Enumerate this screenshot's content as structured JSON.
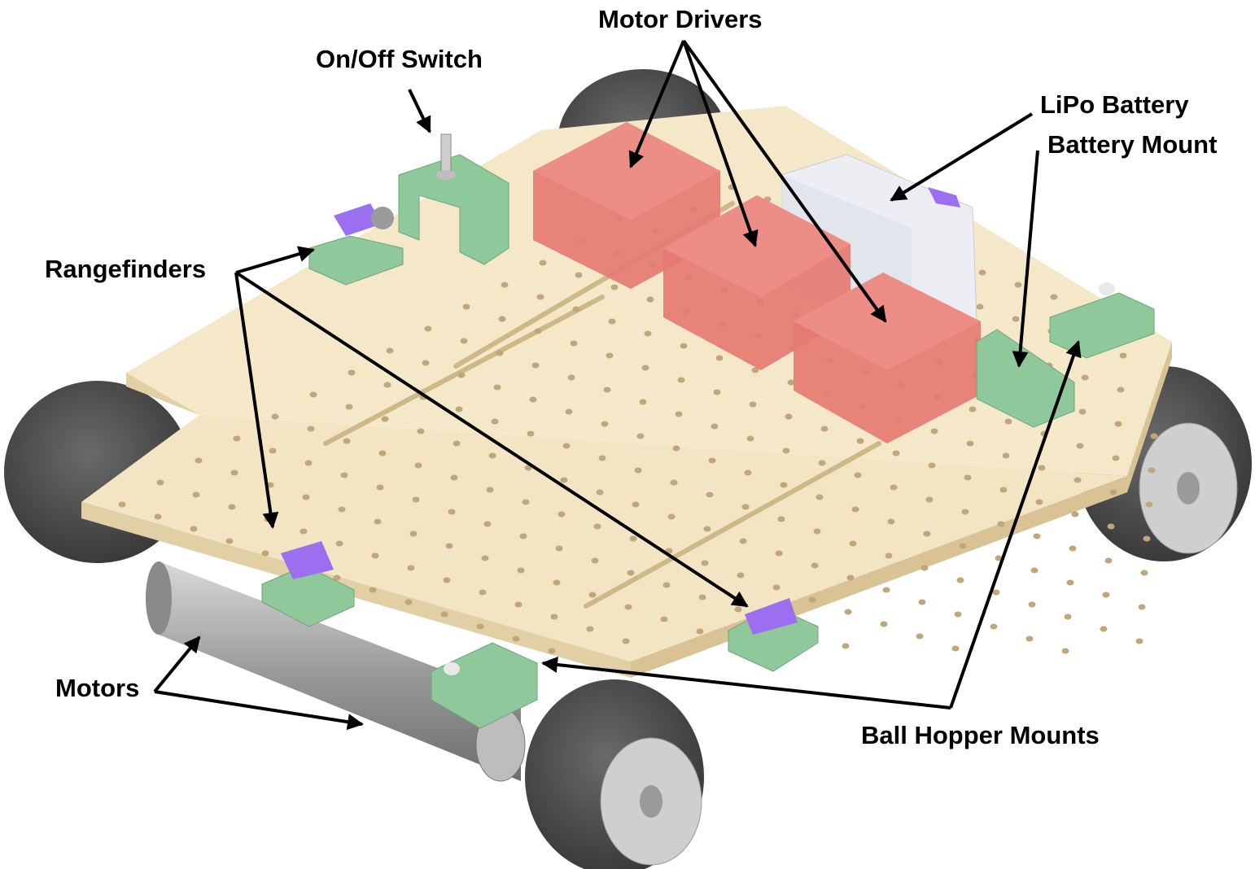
{
  "labels": {
    "motor_drivers": "Motor Drivers",
    "on_off_switch": "On/Off Switch",
    "lipo_battery": "LiPo Battery",
    "battery_mount": "Battery Mount",
    "rangefinders": "Rangefinders",
    "motors": "Motors",
    "ball_hopper_mounts": "Ball Hopper Mounts"
  },
  "colors": {
    "board": "#f2e3c2",
    "board_edge": "#e2cfa6",
    "wheel": "#4e4e4e",
    "hub": "#c6c6c6",
    "motor_driver": "#e57a72",
    "mount": "#8fc89a",
    "rangefinder": "#9b6ff0",
    "battery": "#eceef3"
  }
}
